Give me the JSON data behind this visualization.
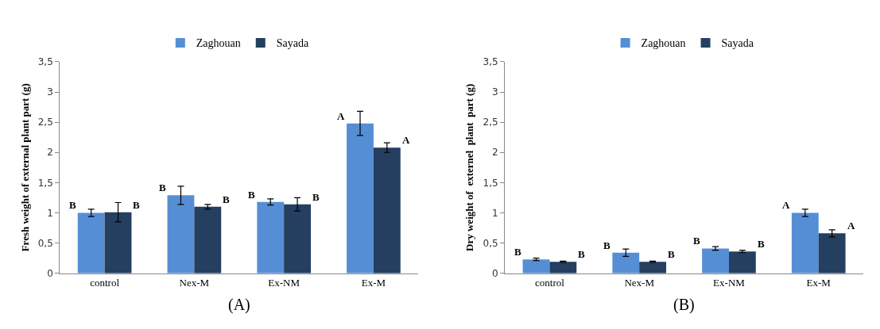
{
  "chart_data": [
    {
      "type": "bar",
      "categories": [
        "control",
        "Nex-M",
        "Ex-NM",
        "Ex-M"
      ],
      "ylabel": "Fresh weight of external plant part (g)",
      "series": [
        {
          "name": "Zaghouan",
          "color": "#558ed5",
          "values": [
            1.0,
            1.29,
            1.18,
            2.48
          ],
          "errors": [
            0.06,
            0.15,
            0.05,
            0.2
          ],
          "value_labels": [
            "B",
            "B",
            "B",
            "A"
          ]
        },
        {
          "name": "Sayada",
          "color": "#243f60",
          "values": [
            1.01,
            1.1,
            1.14,
            2.08
          ],
          "errors": [
            0.16,
            0.04,
            0.11,
            0.08
          ],
          "value_labels": [
            "B",
            "B",
            "B",
            "A"
          ]
        }
      ],
      "ylim": [
        0,
        3.5
      ],
      "yticks": [
        0,
        {
          "value": 0.5,
          "label": "0,5"
        },
        1,
        {
          "value": 1.5,
          "label": "1,5"
        },
        2,
        {
          "value": 2.5,
          "label": "2,5"
        },
        3,
        {
          "value": 3.5,
          "label": "3,5"
        }
      ],
      "legend": "top",
      "annotations": [
        "(A)"
      ]
    },
    {
      "type": "bar",
      "categories": [
        "control",
        "Nex-M",
        "Ex-NM",
        "Ex-M"
      ],
      "ylabel": "Dry weight of  externel  plant  part (g)",
      "series": [
        {
          "name": "Zaghouan",
          "color": "#558ed5",
          "values": [
            0.23,
            0.34,
            0.41,
            1.0
          ],
          "errors": [
            0.02,
            0.06,
            0.03,
            0.06
          ],
          "value_labels": [
            "B",
            "B",
            "B",
            "A"
          ]
        },
        {
          "name": "Sayada",
          "color": "#243f60",
          "values": [
            0.19,
            0.19,
            0.36,
            0.66
          ],
          "errors": [
            0.01,
            0.01,
            0.02,
            0.06
          ],
          "value_labels": [
            "B",
            "B",
            "B",
            "A"
          ]
        }
      ],
      "ylim": [
        0,
        3.5
      ],
      "yticks": [
        0,
        {
          "value": 0.5,
          "label": "0,5"
        },
        1,
        {
          "value": 1.5,
          "label": "1,5"
        },
        2,
        {
          "value": 2.5,
          "label": "2,5"
        },
        3,
        {
          "value": 3.5,
          "label": "3,5"
        }
      ],
      "legend": "top",
      "annotations": [
        "(B)"
      ]
    }
  ]
}
